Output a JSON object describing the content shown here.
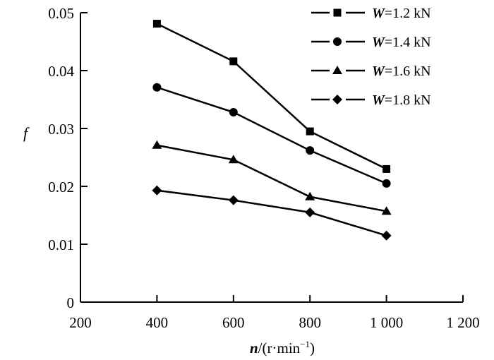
{
  "chart_data": {
    "type": "line",
    "title": "",
    "xlabel": "n/(r·min⁻¹)",
    "xlabel_var": "n",
    "xlabel_unit": "/(r·min",
    "xlabel_sup": "−1",
    "xlabel_close": ")",
    "ylabel": "f",
    "xlim": [
      200,
      1200
    ],
    "ylim": [
      0,
      0.05
    ],
    "xticks": [
      200,
      400,
      600,
      800,
      1000,
      1200
    ],
    "xtick_labels": [
      "200",
      "400",
      "600",
      "800",
      "1 000",
      "1 200"
    ],
    "yticks": [
      0,
      0.01,
      0.02,
      0.03,
      0.04,
      0.05
    ],
    "ytick_labels": [
      "0",
      "0.01",
      "0.02",
      "0.03",
      "0.04",
      "0.05"
    ],
    "grid": false,
    "legend_position": "top-right",
    "x": [
      400,
      600,
      800,
      1000
    ],
    "series": [
      {
        "name": "W=1.2 kN",
        "var": "W",
        "rest": "=1.2 kN",
        "marker": "square",
        "values": [
          0.0481,
          0.0416,
          0.0295,
          0.023
        ]
      },
      {
        "name": "W=1.4 kN",
        "var": "W",
        "rest": "=1.4 kN",
        "marker": "circle",
        "values": [
          0.0371,
          0.0328,
          0.0262,
          0.0205
        ]
      },
      {
        "name": "W=1.6 kN",
        "var": "W",
        "rest": "=1.6 kN",
        "marker": "triangle",
        "values": [
          0.0271,
          0.0246,
          0.0182,
          0.0157
        ]
      },
      {
        "name": "W=1.8 kN",
        "var": "W",
        "rest": "=1.8 kN",
        "marker": "diamond",
        "values": [
          0.0193,
          0.0176,
          0.0155,
          0.0115
        ]
      }
    ],
    "color": "#000000"
  }
}
